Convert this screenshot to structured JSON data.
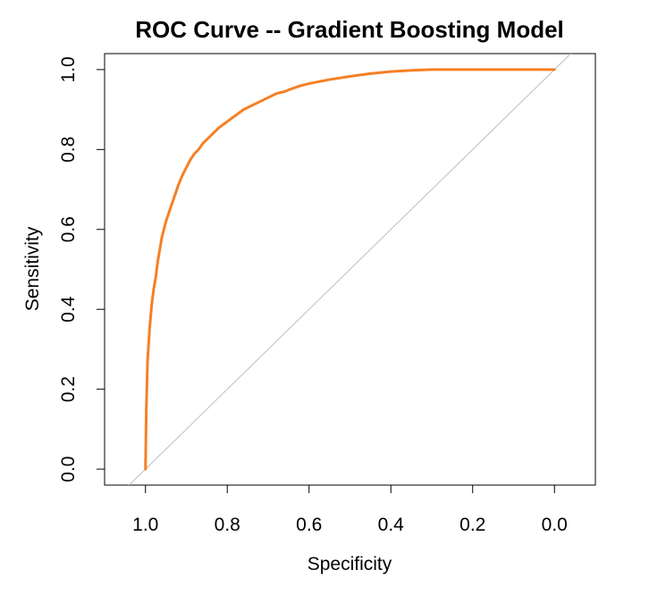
{
  "chart_data": {
    "type": "line",
    "title": "ROC Curve -- Gradient Boosting Model",
    "xlabel": "Specificity",
    "ylabel": "Sensitivity",
    "x_reversed": true,
    "xlim": [
      1.1,
      -0.1
    ],
    "ylim": [
      -0.04,
      1.04
    ],
    "x_ticks": [
      1.0,
      0.8,
      0.6,
      0.4,
      0.2,
      0.0
    ],
    "x_tick_labels": [
      "1.0",
      "0.8",
      "0.6",
      "0.4",
      "0.2",
      "0.0"
    ],
    "y_ticks": [
      0.0,
      0.2,
      0.4,
      0.6,
      0.8,
      1.0
    ],
    "y_tick_labels": [
      "0.0",
      "0.2",
      "0.4",
      "0.6",
      "0.8",
      "1.0"
    ],
    "grid": false,
    "legend": "none",
    "series": [
      {
        "color": "#f58025",
        "x": [
          1.0,
          0.998,
          0.995,
          0.99,
          0.985,
          0.98,
          0.975,
          0.97,
          0.96,
          0.95,
          0.94,
          0.93,
          0.92,
          0.91,
          0.9,
          0.89,
          0.88,
          0.87,
          0.86,
          0.84,
          0.82,
          0.8,
          0.78,
          0.76,
          0.74,
          0.72,
          0.7,
          0.68,
          0.66,
          0.64,
          0.62,
          0.6,
          0.55,
          0.5,
          0.45,
          0.4,
          0.35,
          0.3,
          0.2,
          0.1,
          0.0
        ],
        "y": [
          0.0,
          0.15,
          0.27,
          0.35,
          0.41,
          0.45,
          0.48,
          0.52,
          0.58,
          0.62,
          0.65,
          0.68,
          0.71,
          0.735,
          0.755,
          0.775,
          0.79,
          0.8,
          0.815,
          0.835,
          0.855,
          0.87,
          0.885,
          0.9,
          0.91,
          0.92,
          0.93,
          0.94,
          0.945,
          0.953,
          0.96,
          0.965,
          0.975,
          0.983,
          0.99,
          0.995,
          0.998,
          1.0,
          1.0,
          1.0,
          1.0
        ]
      },
      {
        "color": "#bebebe",
        "x": [
          1.04,
          -0.04
        ],
        "y": [
          -0.04,
          1.04
        ]
      }
    ]
  }
}
